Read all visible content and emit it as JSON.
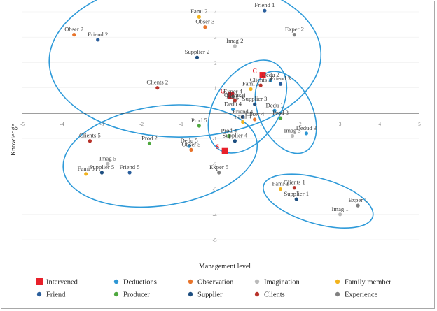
{
  "chart_data": {
    "type": "scatter",
    "title": "",
    "xlabel": "Management level",
    "ylabel": "Knowledge",
    "xlim": [
      -5,
      5
    ],
    "ylim": [
      -5,
      4
    ],
    "x_ticks": [
      "-5",
      "-4",
      "-3",
      "-2",
      "-1",
      "1",
      "2",
      "3",
      "4",
      "5"
    ],
    "y_ticks": [
      "-5",
      "-4",
      "-3",
      "-2",
      "-1",
      "1",
      "2",
      "3",
      "4"
    ],
    "colors": {
      "Intervened": "#e8202a",
      "Deductions": "#2d96d4",
      "Observation": "#e8742b",
      "Imagination": "#bababa",
      "Family member": "#f2b31e",
      "Friend": "#2a5e9c",
      "Producer": "#4ea83e",
      "Supplier": "#1d4e80",
      "Clients": "#b8322a",
      "Experience": "#808080"
    },
    "legend": [
      {
        "name": "Intervened",
        "symbol": "square"
      },
      {
        "name": "Deductions",
        "symbol": "circle"
      },
      {
        "name": "Observation",
        "symbol": "circle"
      },
      {
        "name": "Imagination",
        "symbol": "circle"
      },
      {
        "name": "Family member",
        "symbol": "circle"
      },
      {
        "name": "Friend",
        "symbol": "circle"
      },
      {
        "name": "Producer",
        "symbol": "circle"
      },
      {
        "name": "Supplier",
        "symbol": "circle"
      },
      {
        "name": "Clients",
        "symbol": "circle"
      },
      {
        "name": "Experience",
        "symbol": "circle"
      }
    ],
    "series": [
      {
        "name": "Intervened",
        "points": [
          {
            "x": 0.25,
            "y": 0.7,
            "label": "G"
          },
          {
            "x": 1.05,
            "y": 1.5,
            "label": "C"
          },
          {
            "x": 0.1,
            "y": -1.5,
            "label": "S"
          }
        ]
      },
      {
        "name": "Deductions",
        "points": [
          {
            "x": 1.25,
            "y": 1.3,
            "label": "Dedu 2"
          },
          {
            "x": 1.35,
            "y": 0.1,
            "label": "Dedu 1"
          },
          {
            "x": 2.15,
            "y": -0.8,
            "label": "Dedud 3"
          },
          {
            "x": 0.3,
            "y": 0.15,
            "label": "Dedu 4"
          },
          {
            "x": -0.8,
            "y": -1.3,
            "label": "Dedu 5"
          }
        ]
      },
      {
        "name": "Observation",
        "points": [
          {
            "x": -3.7,
            "y": 3.1,
            "label": "Obser 2"
          },
          {
            "x": -0.4,
            "y": 3.4,
            "label": "Obser 3"
          },
          {
            "x": 0.85,
            "y": -0.25,
            "label": "Obser 4"
          },
          {
            "x": -0.75,
            "y": -1.45,
            "label": "Obser 5"
          }
        ]
      },
      {
        "name": "Imagination",
        "points": [
          {
            "x": 0.35,
            "y": 2.65,
            "label": "Imag 2"
          },
          {
            "x": 0.35,
            "y": 0.45,
            "label": "Imag 4"
          },
          {
            "x": 1.8,
            "y": -0.9,
            "label": "Imag 3"
          },
          {
            "x": -2.85,
            "y": -2.0,
            "label": "Imag 5"
          },
          {
            "x": 3.0,
            "y": -4.0,
            "label": "Imag 1"
          }
        ]
      },
      {
        "name": "Family member",
        "points": [
          {
            "x": -0.55,
            "y": 3.8,
            "label": "Fami 2"
          },
          {
            "x": 0.75,
            "y": 0.95,
            "label": "Fami 3"
          },
          {
            "x": 0.55,
            "y": -0.35,
            "label": "Fami 4"
          },
          {
            "x": -3.4,
            "y": -2.4,
            "label": "Fami 5"
          },
          {
            "x": 1.5,
            "y": -3.0,
            "label": "Fami 1"
          }
        ]
      },
      {
        "name": "Friend",
        "points": [
          {
            "x": -3.1,
            "y": 2.9,
            "label": "Friend 2"
          },
          {
            "x": 1.1,
            "y": 4.05,
            "label": "Friend 1"
          },
          {
            "x": 1.5,
            "y": 1.15,
            "label": "Friend 3"
          },
          {
            "x": 0.55,
            "y": -0.15,
            "label": "Friend 4"
          },
          {
            "x": -2.3,
            "y": -2.35,
            "label": "Friend 5"
          }
        ]
      },
      {
        "name": "Producer",
        "points": [
          {
            "x": -1.8,
            "y": -1.2,
            "label": "Prod 2"
          },
          {
            "x": -0.55,
            "y": -0.5,
            "label": "Prod 5"
          },
          {
            "x": 0.2,
            "y": -0.9,
            "label": "Prod 4"
          },
          {
            "x": 1.5,
            "y": -0.2,
            "label": "Prod 3"
          }
        ]
      },
      {
        "name": "Supplier",
        "points": [
          {
            "x": -0.6,
            "y": 2.2,
            "label": "Supplier 2"
          },
          {
            "x": 0.85,
            "y": 0.35,
            "label": "Supplier 3"
          },
          {
            "x": 0.35,
            "y": -1.1,
            "label": "Supplier 4"
          },
          {
            "x": -3.0,
            "y": -2.35,
            "label": "Supplier 5"
          },
          {
            "x": 1.9,
            "y": -3.4,
            "label": "Supplier 1"
          }
        ]
      },
      {
        "name": "Clients",
        "points": [
          {
            "x": -1.6,
            "y": 1.0,
            "label": "Clients 2"
          },
          {
            "x": 0.35,
            "y": 0.5,
            "label": "Clients 4"
          },
          {
            "x": 1.0,
            "y": 1.1,
            "label": "Clients 3"
          },
          {
            "x": -3.3,
            "y": -1.1,
            "label": "Clients 5"
          },
          {
            "x": 1.85,
            "y": -2.95,
            "label": "Clients 1"
          }
        ]
      },
      {
        "name": "Experience",
        "points": [
          {
            "x": 1.85,
            "y": 3.1,
            "label": "Exper 2"
          },
          {
            "x": 0.3,
            "y": 0.65,
            "label": "Exper 4"
          },
          {
            "x": -0.05,
            "y": -2.35,
            "label": "Exper 5"
          },
          {
            "x": 3.45,
            "y": -3.65,
            "label": "Exper 1"
          }
        ]
      }
    ],
    "groups": [
      {
        "name": "group-2",
        "members": [
          "Obser 2",
          "Friend 2",
          "Fami 2",
          "Obser 3",
          "Supplier 2",
          "Imag 2",
          "Friend 1",
          "Exper 2",
          "Clients 2",
          "Clients 4"
        ]
      },
      {
        "name": "group-4",
        "members": [
          "Clients 3",
          "Dedu 2",
          "Fami 3",
          "Supplier 3",
          "Dedu 4",
          "Imag 4",
          "Fami 4",
          "Friend 4",
          "Obser 4",
          "Prod 4"
        ]
      },
      {
        "name": "group-3",
        "members": [
          "Friend 3",
          "Dedu 1",
          "Prod 3",
          "Imag 3",
          "Dedud 3"
        ]
      },
      {
        "name": "group-5",
        "members": [
          "Clients 5",
          "Imag 5",
          "Fami 5",
          "Supplier 5",
          "Friend 5",
          "Prod 2",
          "Dedu 5",
          "Prod 5",
          "Obser 5",
          "Exper 5",
          "Supplier 4"
        ]
      },
      {
        "name": "group-1",
        "members": [
          "Fami 1",
          "Clients 1",
          "Supplier 1",
          "Exper 1",
          "Imag 1"
        ]
      }
    ]
  }
}
